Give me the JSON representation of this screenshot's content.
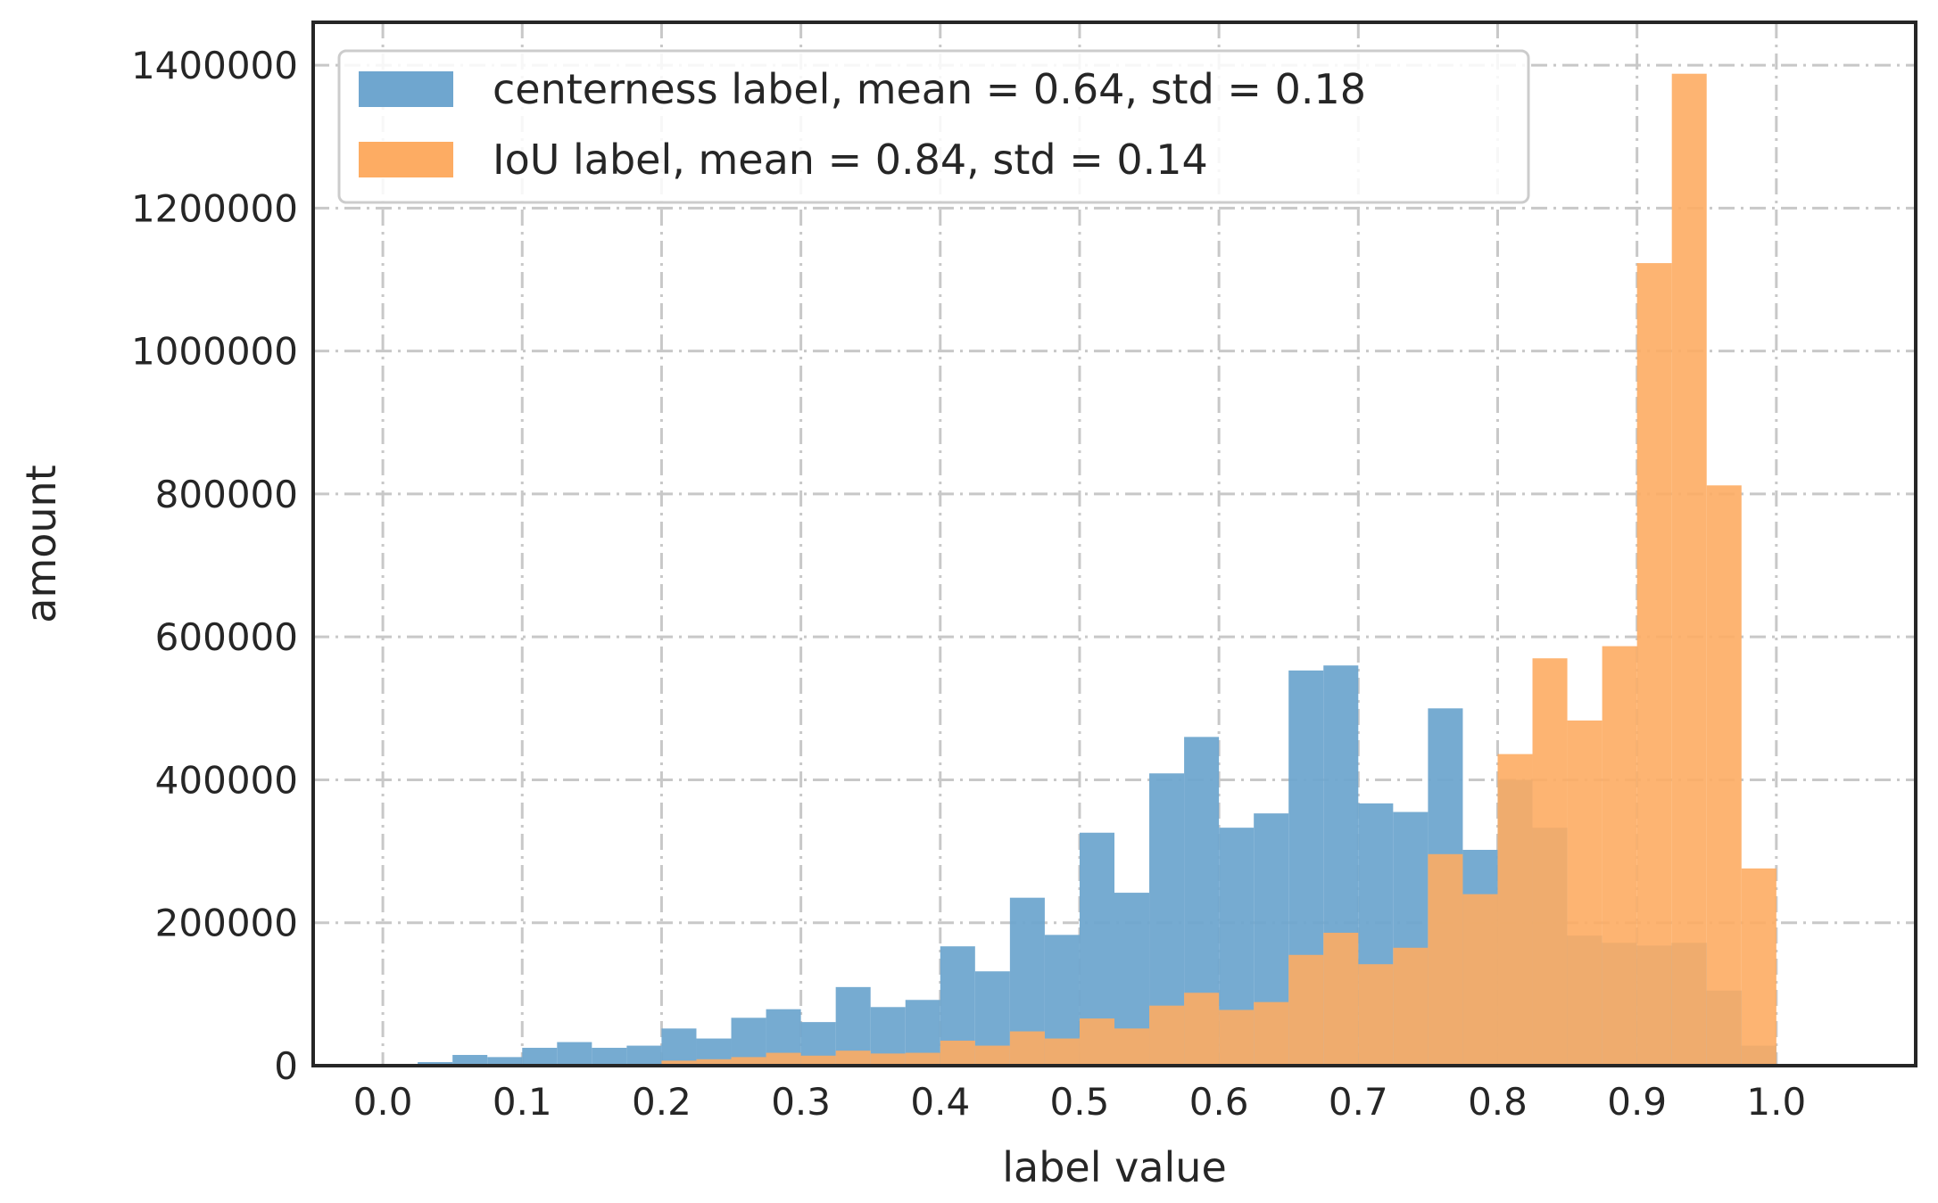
{
  "chart_data": {
    "type": "bar",
    "xlabel": "label value",
    "ylabel": "amount",
    "xlim": [
      -0.05,
      1.1
    ],
    "ylim": [
      0,
      1460000
    ],
    "grid": true,
    "legend_position": "top-left",
    "bin_width": 0.025,
    "bin_starts": [
      0.0,
      0.025,
      0.05,
      0.075,
      0.1,
      0.125,
      0.15,
      0.175,
      0.2,
      0.225,
      0.25,
      0.275,
      0.3,
      0.325,
      0.35,
      0.375,
      0.4,
      0.425,
      0.45,
      0.475,
      0.5,
      0.525,
      0.55,
      0.575,
      0.6,
      0.625,
      0.65,
      0.675,
      0.7,
      0.725,
      0.75,
      0.775,
      0.8,
      0.825,
      0.85,
      0.875,
      0.9,
      0.925,
      0.95,
      0.975
    ],
    "x_ticks": [
      "0.0",
      "0.1",
      "0.2",
      "0.3",
      "0.4",
      "0.5",
      "0.6",
      "0.7",
      "0.8",
      "0.9",
      "1.0"
    ],
    "y_ticks": [
      "0",
      "200000",
      "400000",
      "600000",
      "800000",
      "1000000",
      "1200000",
      "1400000"
    ],
    "series": [
      {
        "name": "centerness label, mean = 0.64, std = 0.18",
        "color": "#6fa6cf",
        "values": [
          0,
          5000,
          15000,
          12000,
          25000,
          33000,
          25000,
          28000,
          52000,
          38000,
          67000,
          79000,
          61000,
          110000,
          82000,
          92000,
          167000,
          132000,
          235000,
          183000,
          326000,
          242000,
          409000,
          460000,
          333000,
          353000,
          553000,
          560000,
          367000,
          355000,
          500000,
          302000,
          400000,
          333000,
          182000,
          172000,
          168000,
          172000,
          105000,
          28000
        ]
      },
      {
        "name": "IoU label, mean = 0.84, std = 0.14",
        "color": "#fdac63",
        "values": [
          0,
          0,
          0,
          0,
          0,
          0,
          0,
          0,
          7000,
          9000,
          12000,
          18000,
          14000,
          21000,
          17000,
          18000,
          35000,
          28000,
          48000,
          38000,
          66000,
          52000,
          84000,
          102000,
          78000,
          89000,
          155000,
          186000,
          142000,
          165000,
          296000,
          240000,
          436000,
          570000,
          483000,
          587000,
          1123000,
          1388000,
          812000,
          276000
        ]
      }
    ]
  }
}
